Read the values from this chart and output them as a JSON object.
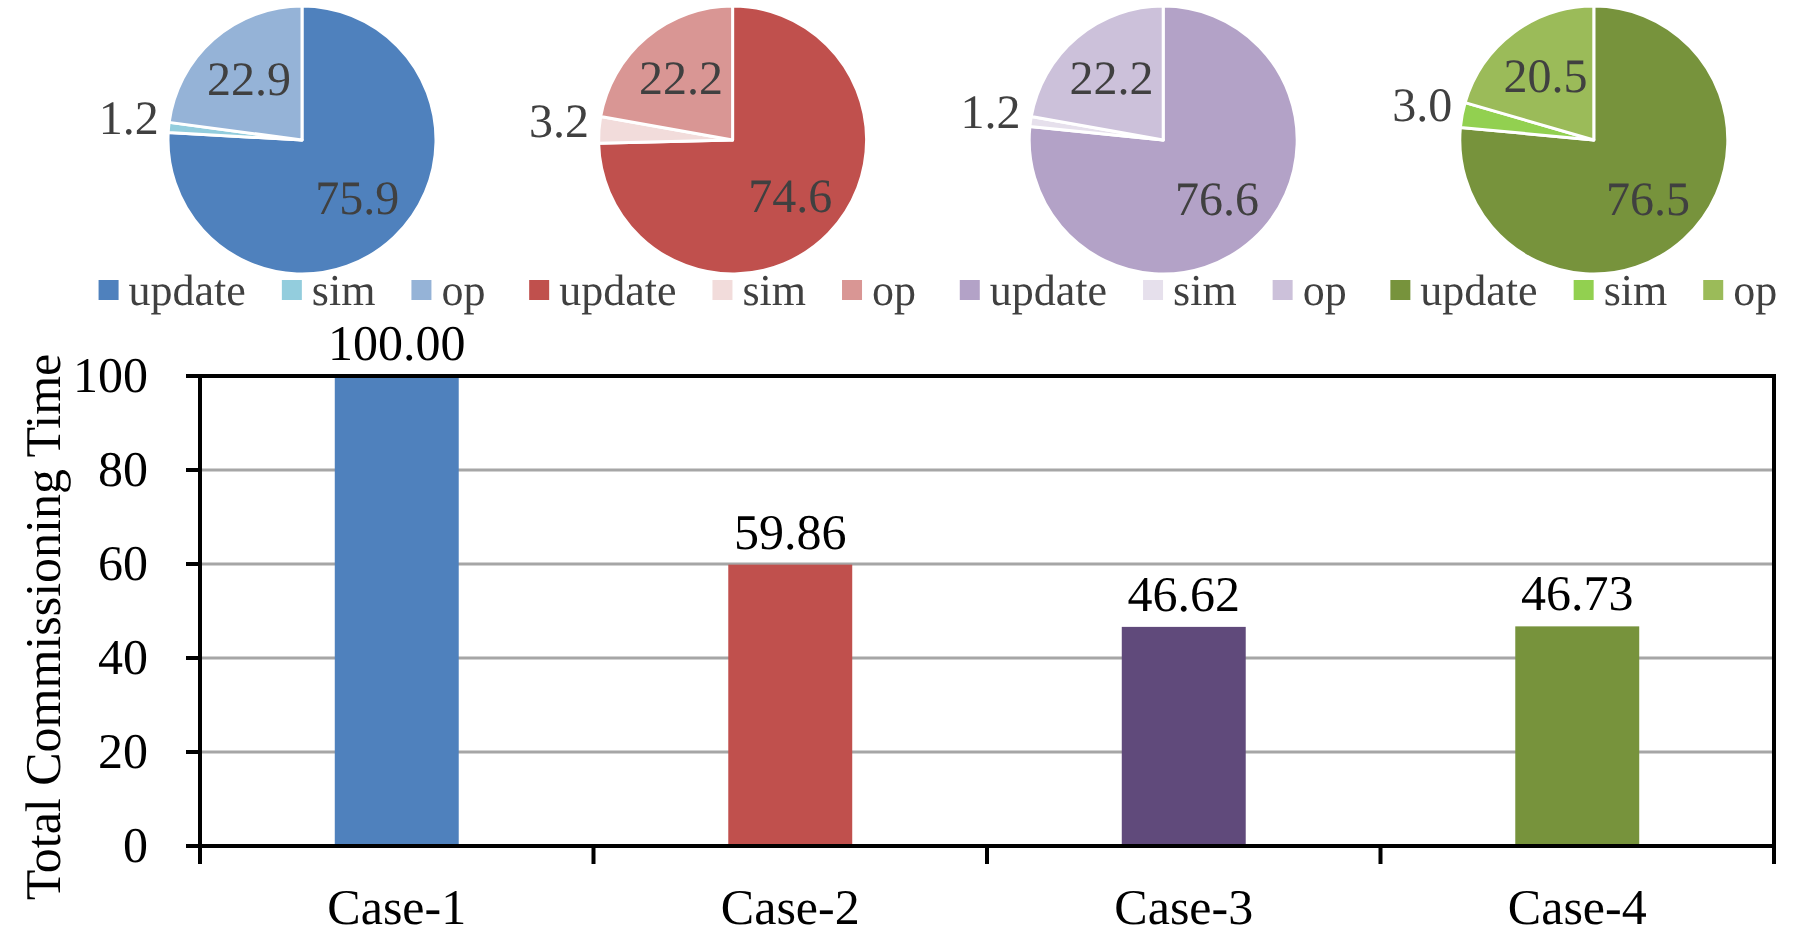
{
  "chart_data": [
    {
      "type": "pie",
      "categories": [
        "update",
        "sim",
        "op"
      ],
      "values": [
        75.9,
        1.2,
        22.9
      ],
      "value_labels": [
        "75.9",
        "1.2",
        "22.9"
      ],
      "colors": [
        "#4f81bd",
        "#93cddd",
        "#95b3d7"
      ],
      "legend": "bottom"
    },
    {
      "type": "pie",
      "categories": [
        "update",
        "sim",
        "op"
      ],
      "values": [
        74.6,
        3.2,
        22.2
      ],
      "value_labels": [
        "74.6",
        "3.2",
        "22.2"
      ],
      "colors": [
        "#c0504d",
        "#f2dcdb",
        "#d99694"
      ],
      "legend": "bottom"
    },
    {
      "type": "pie",
      "categories": [
        "update",
        "sim",
        "op"
      ],
      "values": [
        76.6,
        1.2,
        22.2
      ],
      "value_labels": [
        "76.6",
        "1.2",
        "22.2"
      ],
      "colors": [
        "#b3a2c7",
        "#e6e0ec",
        "#ccc1da"
      ],
      "legend": "bottom"
    },
    {
      "type": "pie",
      "categories": [
        "update",
        "sim",
        "op"
      ],
      "values": [
        76.5,
        3.0,
        20.5
      ],
      "value_labels": [
        "76.5",
        "3.0",
        "20.5"
      ],
      "colors": [
        "#77933c",
        "#92d050",
        "#9bbb59"
      ],
      "legend": "bottom"
    },
    {
      "type": "bar",
      "ylabel": "Total Commissioning Time",
      "categories": [
        "Case-1",
        "Case-2",
        "Case-3",
        "Case-4"
      ],
      "values": [
        100.0,
        59.86,
        46.62,
        46.73
      ],
      "value_labels": [
        "100.00",
        "59.86",
        "46.62",
        "46.73"
      ],
      "colors": [
        "#4f81bd",
        "#c0504d",
        "#604a7b",
        "#77933c"
      ],
      "ylim": [
        0,
        100
      ],
      "yticks": [
        0,
        20,
        40,
        60,
        80,
        100
      ],
      "grid": "y"
    }
  ]
}
